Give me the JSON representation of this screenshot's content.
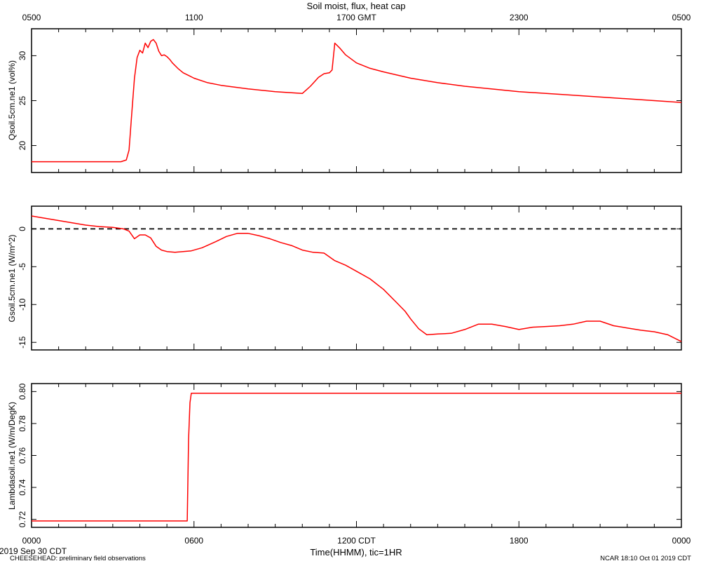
{
  "chart_data": [
    {
      "type": "line",
      "title": "Soil moist, flux, heat cap",
      "top_axis_ticks": [
        "0500",
        "1100",
        "1700 GMT",
        "2300",
        "0500"
      ],
      "ylabel": "Qsoil.5cm.ne1 (vol%)",
      "ylim": [
        17,
        33
      ],
      "yticks": [
        "20",
        "25",
        "30"
      ],
      "grid": false,
      "color": "#ff0000",
      "series": [
        {
          "x": [
            0,
            3.3,
            3.5,
            3.6,
            3.7,
            3.8,
            3.9,
            4.0,
            4.1,
            4.2,
            4.3,
            4.4,
            4.5,
            4.6,
            4.7,
            4.8,
            4.9,
            5.0,
            5.1,
            5.2,
            5.4,
            5.6,
            5.8,
            6.0,
            6.5,
            7.0,
            8.0,
            9.0,
            9.5,
            10.0,
            10.3,
            10.6,
            10.8,
            11.0,
            11.1,
            11.2,
            11.4,
            11.6,
            12.0,
            12.5,
            13.0,
            14.0,
            15.0,
            16.0,
            18.0,
            20.0,
            22.0,
            24.0
          ],
          "y": [
            18.2,
            18.2,
            18.4,
            19.5,
            23.5,
            27.5,
            29.8,
            30.6,
            30.3,
            31.4,
            30.9,
            31.6,
            31.8,
            31.4,
            30.5,
            30.0,
            30.1,
            29.9,
            29.6,
            29.2,
            28.6,
            28.1,
            27.8,
            27.5,
            27.0,
            26.7,
            26.3,
            26.0,
            25.9,
            25.8,
            26.6,
            27.6,
            28.0,
            28.1,
            28.4,
            31.4,
            30.8,
            30.1,
            29.2,
            28.6,
            28.2,
            27.5,
            27.0,
            26.6,
            26.0,
            25.6,
            25.2,
            24.8
          ]
        }
      ]
    },
    {
      "type": "line",
      "ylabel": "Gsoil.5cm.ne1 (W/m^2)",
      "ylim": [
        -16,
        3
      ],
      "yticks": [
        "0",
        "-5",
        "-10",
        "-15"
      ],
      "reference_line": 0,
      "grid": false,
      "color": "#ff0000",
      "series": [
        {
          "x": [
            0,
            1.0,
            2.0,
            2.5,
            3.0,
            3.4,
            3.6,
            3.8,
            4.0,
            4.2,
            4.4,
            4.6,
            4.8,
            5.0,
            5.3,
            5.6,
            5.9,
            6.3,
            6.8,
            7.2,
            7.6,
            8.0,
            8.4,
            8.8,
            9.2,
            9.6,
            10.0,
            10.4,
            10.8,
            11.2,
            11.4,
            11.6,
            12.0,
            12.5,
            13.0,
            13.5,
            13.8,
            14.0,
            14.3,
            14.6,
            15.0,
            15.5,
            16.0,
            16.5,
            17.0,
            17.5,
            18.0,
            18.5,
            19.0,
            19.5,
            20.0,
            20.5,
            21.0,
            21.5,
            22.0,
            22.5,
            23.0,
            23.5,
            24.0
          ],
          "y": [
            1.7,
            1.1,
            0.5,
            0.3,
            0.2,
            0.0,
            -0.3,
            -1.3,
            -0.8,
            -0.8,
            -1.2,
            -2.3,
            -2.8,
            -3.0,
            -3.1,
            -3.0,
            -2.9,
            -2.5,
            -1.7,
            -1.0,
            -0.6,
            -0.6,
            -0.9,
            -1.3,
            -1.8,
            -2.2,
            -2.8,
            -3.1,
            -3.2,
            -4.2,
            -4.5,
            -4.8,
            -5.6,
            -6.6,
            -8.0,
            -9.8,
            -10.9,
            -11.9,
            -13.2,
            -14.0,
            -13.9,
            -13.8,
            -13.3,
            -12.6,
            -12.6,
            -12.9,
            -13.3,
            -13.0,
            -12.9,
            -12.8,
            -12.6,
            -12.2,
            -12.2,
            -12.8,
            -13.1,
            -13.4,
            -13.6,
            -14.0,
            -14.9
          ]
        }
      ]
    },
    {
      "type": "line",
      "ylabel": "Lambdasoil.ne1 (W/m/DegK)",
      "ylim": [
        0.715,
        0.805
      ],
      "yticks": [
        "0.72",
        "0.74",
        "0.76",
        "0.78",
        "0.80"
      ],
      "grid": false,
      "color": "#ff0000",
      "series": [
        {
          "x": [
            0,
            5.75,
            5.8,
            5.85,
            5.9,
            24.0
          ],
          "y": [
            0.719,
            0.719,
            0.77,
            0.793,
            0.799,
            0.799
          ]
        }
      ]
    }
  ],
  "bottom_axis_ticks": [
    "0000",
    "0600",
    "1200 CDT",
    "1800",
    "0000"
  ],
  "xlabel": "Time(HHMM), tic=1HR",
  "date_label": "2019 Sep 30 CDT",
  "project_label": "CHEESEHEAD: preliminary field observations",
  "credit_label": "NCAR 18:10 Oct 01 2019 CDT"
}
